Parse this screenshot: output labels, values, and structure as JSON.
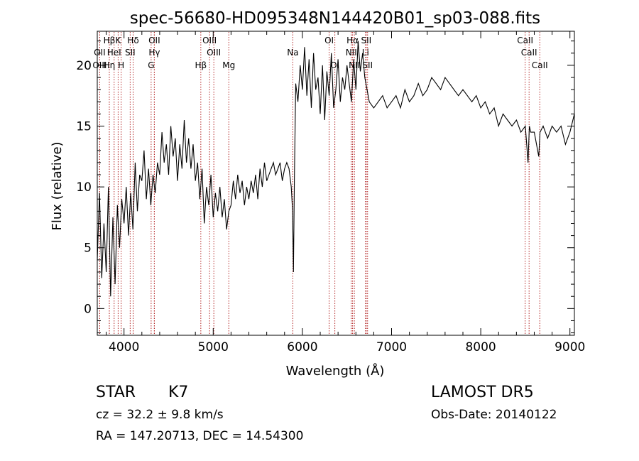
{
  "chart_data": {
    "type": "line",
    "title": "spec-56680-HD095348N144420B01_sp03-088.fits",
    "xlabel": "Wavelength (Å)",
    "ylabel": "Flux (relative)",
    "xlim": [
      3700,
      9050
    ],
    "ylim": [
      -2.2,
      22.8
    ],
    "xticks": [
      4000,
      5000,
      6000,
      7000,
      8000,
      9000
    ],
    "yticks": [
      0,
      5,
      10,
      15,
      20
    ],
    "grid": false,
    "line_color": "#000000",
    "marker_color": "#b22222",
    "lines": [
      {
        "label": "Hβ",
        "x": 3835,
        "row": 1
      },
      {
        "label": "K",
        "x": 3934,
        "row": 1
      },
      {
        "label": "Hδ",
        "x": 4102,
        "row": 1
      },
      {
        "label": "OII",
        "x": 4340,
        "row": 1
      },
      {
        "label": "OIII",
        "x": 4959,
        "row": 1
      },
      {
        "label": "OI",
        "x": 6300,
        "row": 1
      },
      {
        "label": "Hα",
        "x": 6563,
        "row": 1
      },
      {
        "label": "SII",
        "x": 6716,
        "row": 1
      },
      {
        "label": "CaII",
        "x": 8498,
        "row": 1
      },
      {
        "label": "OII",
        "x": 3727,
        "row": 2
      },
      {
        "label": "HeI",
        "x": 3889,
        "row": 2
      },
      {
        "label": "SII",
        "x": 4069,
        "row": 2
      },
      {
        "label": "Hγ",
        "x": 4340,
        "row": 2
      },
      {
        "label": "OIII",
        "x": 5007,
        "row": 2
      },
      {
        "label": "Na",
        "x": 5893,
        "row": 2
      },
      {
        "label": "NII",
        "x": 6548,
        "row": 2
      },
      {
        "label": "Li",
        "x": 6708,
        "row": 2
      },
      {
        "label": "CaII",
        "x": 8542,
        "row": 2
      },
      {
        "label": "OIII",
        "x": 3727,
        "row": 3
      },
      {
        "label": "Hη",
        "x": 3835,
        "row": 3
      },
      {
        "label": "H",
        "x": 3968,
        "row": 3
      },
      {
        "label": "G",
        "x": 4304,
        "row": 3
      },
      {
        "label": "Hβ",
        "x": 4861,
        "row": 3
      },
      {
        "label": "Mg",
        "x": 5175,
        "row": 3
      },
      {
        "label": "OI",
        "x": 6364,
        "row": 3
      },
      {
        "label": "NII",
        "x": 6583,
        "row": 3
      },
      {
        "label": "SII",
        "x": 6731,
        "row": 3
      },
      {
        "label": "CaII",
        "x": 8662,
        "row": 3
      }
    ],
    "series": [
      {
        "x": [
          3700,
          3725,
          3750,
          3775,
          3800,
          3825,
          3850,
          3875,
          3900,
          3925,
          3950,
          3975,
          4000,
          4025,
          4050,
          4075,
          4100,
          4125,
          4150,
          4175,
          4200,
          4225,
          4250,
          4275,
          4300,
          4325,
          4350,
          4375,
          4400,
          4425,
          4450,
          4475,
          4500,
          4525,
          4550,
          4575,
          4600,
          4625,
          4650,
          4675,
          4700,
          4725,
          4750,
          4775,
          4800,
          4825,
          4850,
          4875,
          4900,
          4925,
          4950,
          4975,
          5000,
          5025,
          5050,
          5075,
          5100,
          5125,
          5150,
          5175,
          5200,
          5225,
          5250,
          5275,
          5300,
          5325,
          5350,
          5375,
          5400,
          5425,
          5450,
          5475,
          5500,
          5525,
          5550,
          5575,
          5600,
          5625,
          5650,
          5675,
          5700,
          5725,
          5750,
          5775,
          5800,
          5825,
          5850,
          5875,
          5890,
          5900,
          5910,
          5925,
          5950,
          5975,
          6000,
          6025,
          6050,
          6075,
          6100,
          6125,
          6150,
          6175,
          6200,
          6225,
          6250,
          6275,
          6300,
          6325,
          6350,
          6375,
          6400,
          6425,
          6450,
          6475,
          6500,
          6525,
          6550,
          6575,
          6600,
          6625,
          6650,
          6675,
          6700,
          6725,
          6750,
          6800,
          6850,
          6900,
          6950,
          7000,
          7050,
          7100,
          7150,
          7200,
          7250,
          7300,
          7350,
          7400,
          7450,
          7500,
          7550,
          7600,
          7650,
          7700,
          7750,
          7800,
          7850,
          7900,
          7950,
          8000,
          8050,
          8100,
          8150,
          8200,
          8250,
          8300,
          8350,
          8400,
          8450,
          8500,
          8530,
          8545,
          8560,
          8600,
          8650,
          8665,
          8700,
          8750,
          8800,
          8850,
          8900,
          8950,
          9000,
          9050
        ],
        "values": [
          4.0,
          9.5,
          2.5,
          7.0,
          3.0,
          10.0,
          1.0,
          7.5,
          2.0,
          8.5,
          5.0,
          9.0,
          7.0,
          10.0,
          6.0,
          9.5,
          6.5,
          12.0,
          8.0,
          11.0,
          10.5,
          13.0,
          9.0,
          11.5,
          8.5,
          11.0,
          9.5,
          12.0,
          11.0,
          14.5,
          12.0,
          13.5,
          11.0,
          15.0,
          12.5,
          14.0,
          10.5,
          13.5,
          11.5,
          15.5,
          12.0,
          14.0,
          11.5,
          13.5,
          10.5,
          12.0,
          9.0,
          11.5,
          7.0,
          10.0,
          8.5,
          11.0,
          7.5,
          9.5,
          8.0,
          10.0,
          7.5,
          9.0,
          6.5,
          8.0,
          8.5,
          10.5,
          9.0,
          11.0,
          9.5,
          10.5,
          8.5,
          10.0,
          9.0,
          10.5,
          9.5,
          11.0,
          9.0,
          11.5,
          10.0,
          12.0,
          10.5,
          11.0,
          11.5,
          12.0,
          11.0,
          11.5,
          12.0,
          10.5,
          11.5,
          12.0,
          11.5,
          10.0,
          8.0,
          3.0,
          10.5,
          18.5,
          17.0,
          20.0,
          18.0,
          21.5,
          17.5,
          20.5,
          16.5,
          21.0,
          18.0,
          19.0,
          16.0,
          20.0,
          15.5,
          19.5,
          17.5,
          21.0,
          16.5,
          18.0,
          20.5,
          17.0,
          19.0,
          18.0,
          20.0,
          18.5,
          17.0,
          20.5,
          18.0,
          22.0,
          19.5,
          21.0,
          19.0,
          18.0,
          17.0,
          16.5,
          17.0,
          17.5,
          16.5,
          17.0,
          17.5,
          16.5,
          18.0,
          17.0,
          17.5,
          18.5,
          17.5,
          18.0,
          19.0,
          18.5,
          18.0,
          19.0,
          18.5,
          18.0,
          17.5,
          18.0,
          17.5,
          17.0,
          17.5,
          16.5,
          17.0,
          16.0,
          16.5,
          15.0,
          16.0,
          15.5,
          15.0,
          15.5,
          14.5,
          15.0,
          12.0,
          15.0,
          14.5,
          14.5,
          12.5,
          14.5,
          15.0,
          14.0,
          15.0,
          14.5,
          15.0,
          13.5,
          14.5,
          16.0
        ]
      }
    ]
  },
  "info": {
    "object_class": "STAR",
    "subclass": "K7",
    "survey": "LAMOST DR5",
    "cz": "cz = 32.2 ± 9.8 km/s",
    "obs_date": "Obs-Date: 20140122",
    "coords": "RA = 147.20713, DEC =  14.54300"
  }
}
